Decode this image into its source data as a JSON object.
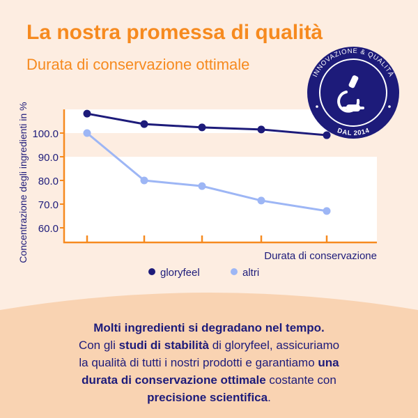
{
  "header": {
    "title": "La nostra promessa di qualità",
    "subtitle": "Durata di conservazione ottimale"
  },
  "badge": {
    "top_text": "INNOVAZIONE & QUALITÀ",
    "bottom_text": "DAL 2014",
    "icon": "microscope-icon",
    "color": "#1d1b7a"
  },
  "chart_data": {
    "type": "line",
    "xlabel": "Durata di conservazione",
    "ylabel": "Concentrazione degli ingredienti in %",
    "yticks": [
      "60.0",
      "70.0",
      "80.0",
      "90.0",
      "100.0"
    ],
    "ylim": [
      53,
      108
    ],
    "x": [
      1,
      2,
      3,
      4,
      5
    ],
    "grid": false,
    "legend": "bottom",
    "series": [
      {
        "name": "gloryfeel",
        "color": "#1d1b7a",
        "values": [
          108.2,
          103.8,
          102.4,
          101.5,
          99.1
        ]
      },
      {
        "name": "altri",
        "color": "#9db6f5",
        "values": [
          100,
          80,
          77.6,
          71.5,
          67.1
        ]
      }
    ]
  },
  "body": {
    "line1": "Molti ingredienti si degradano nel tempo.",
    "p1": "Con gli ",
    "b1": "studi di stabilità",
    "p2": " di gloryfeel, assicuriamo",
    "p3": "la qualità di tutti i nostri prodotti e garantiamo ",
    "b2": "una",
    "b3": "durata di conservazione ottimale",
    "p4": " costante con",
    "b4": "precisione scientifica",
    "p5": "."
  },
  "colors": {
    "accent": "#f68a1f",
    "navy": "#1d1b7a",
    "light_blue": "#9db6f5",
    "background": "#fdede1",
    "peach": "#f9d3b2"
  }
}
